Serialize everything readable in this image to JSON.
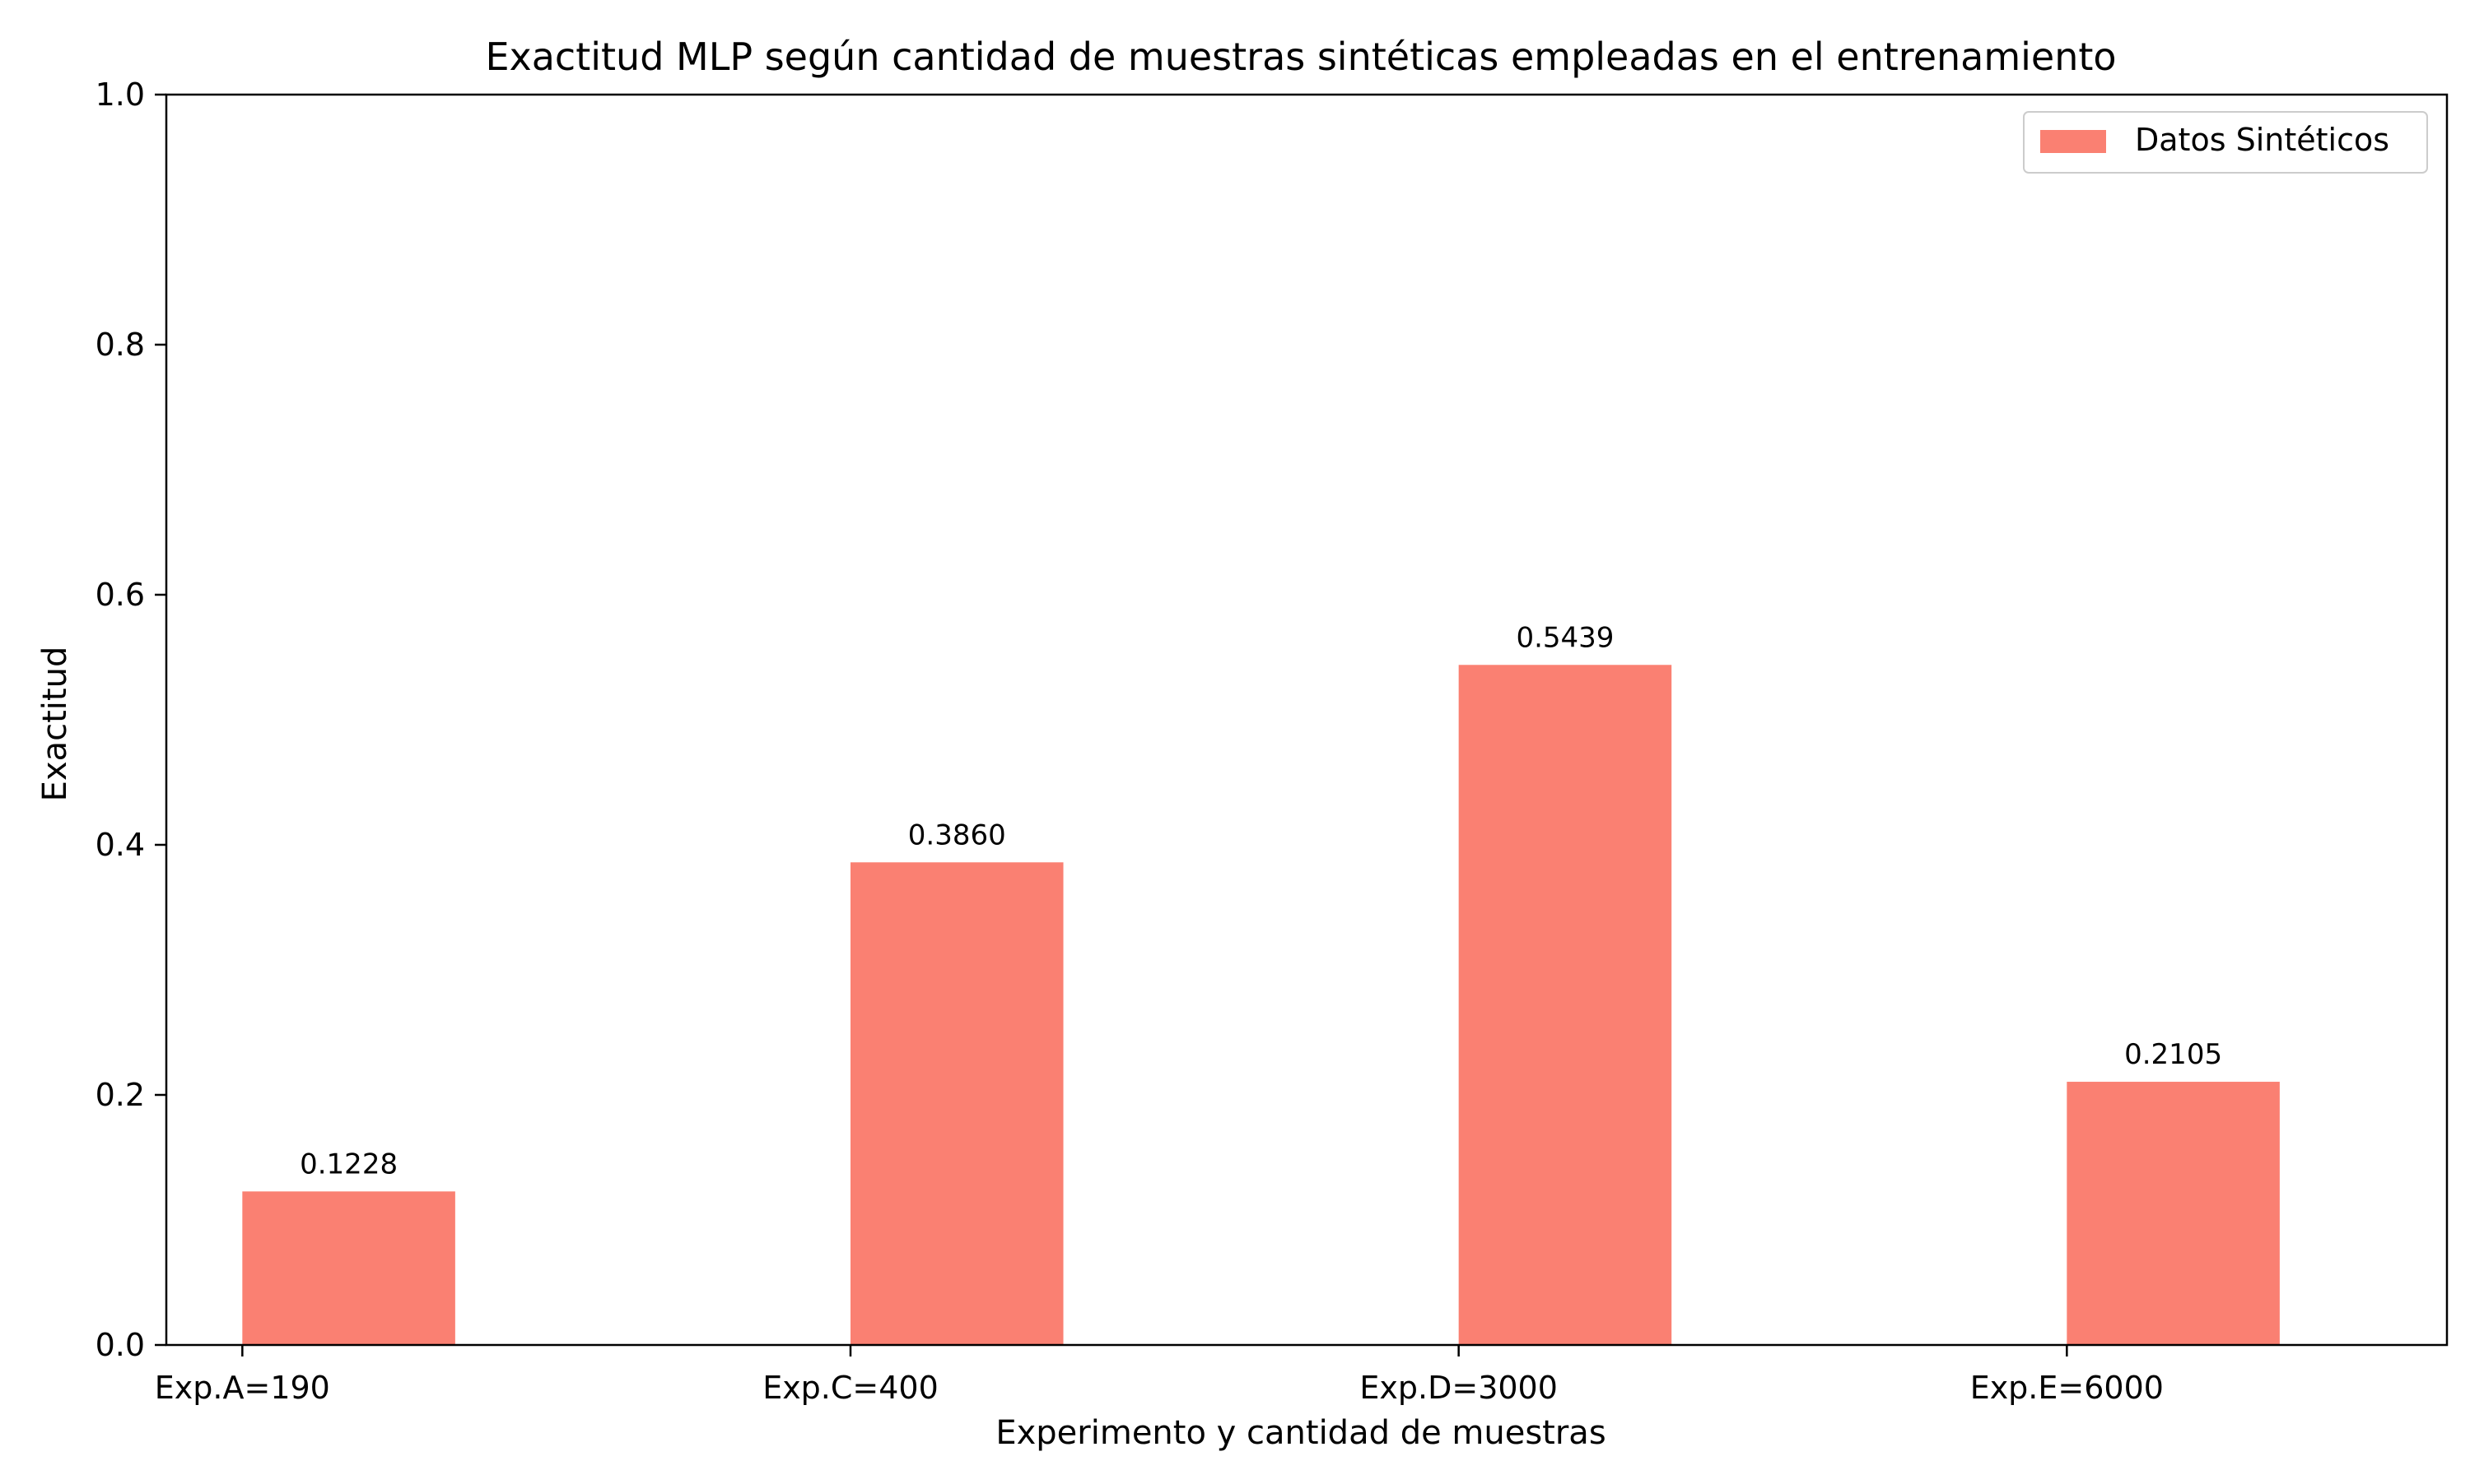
{
  "chart_data": {
    "type": "bar",
    "title": "Exactitud MLP según cantidad de muestras sintéticas empleadas en el entrenamiento",
    "xlabel": "Experimento y cantidad de muestras",
    "ylabel": "Exactitud",
    "categories": [
      "Exp.A=190",
      "Exp.C=400",
      "Exp.D=3000",
      "Exp.E=6000"
    ],
    "series": [
      {
        "name": "Datos Sintéticos",
        "values": [
          0.1228,
          0.386,
          0.5439,
          0.2105
        ],
        "value_labels": [
          "0.1228",
          "0.3860",
          "0.5439",
          "0.2105"
        ],
        "color": "#fa8072"
      }
    ],
    "ylim": [
      0,
      1.0
    ],
    "yticks": [
      0.0,
      0.2,
      0.4,
      0.6,
      0.8,
      1.0
    ],
    "ytick_labels": [
      "0.0",
      "0.2",
      "0.4",
      "0.6",
      "0.8",
      "1.0"
    ],
    "grid": false,
    "legend": {
      "position": "top-right",
      "entries": [
        "Datos Sintéticos"
      ]
    }
  }
}
